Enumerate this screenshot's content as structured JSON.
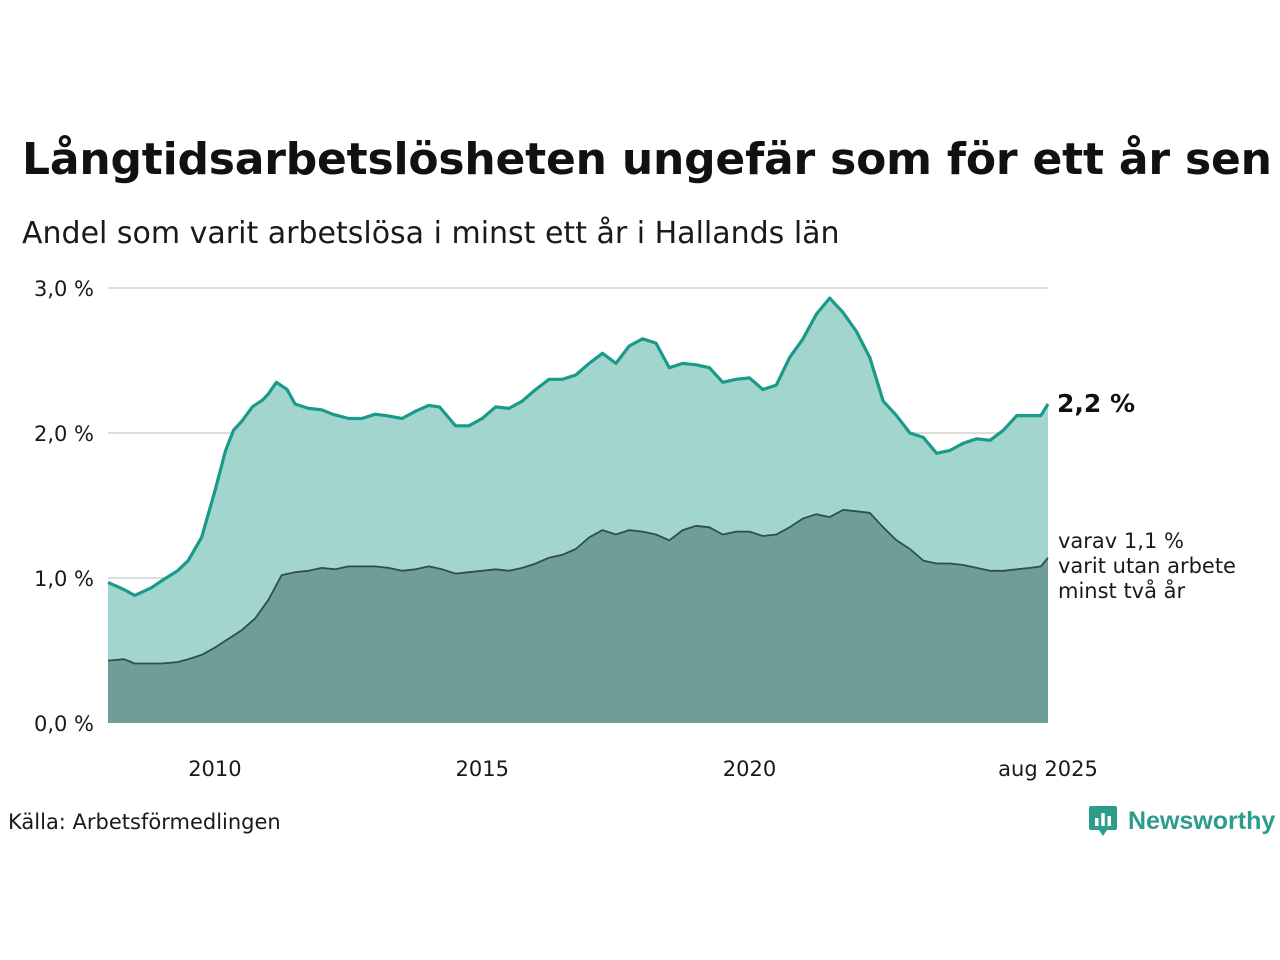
{
  "title": "Långtidsarbetslösheten ungefär som för ett år sen",
  "subtitle": "Andel som varit arbetslösa i minst ett år i Hallands län",
  "source": "Källa: Arbetsförmedlingen",
  "brand": {
    "name": "Newsworthy",
    "icon": "newsworthy-logo-icon",
    "color": "#2c9c8c"
  },
  "colors": {
    "outer_fill": "#a3d5cf",
    "outer_line": "#1a9a8a",
    "inner_fill": "#6f9e98",
    "inner_line": "#2f4f4a",
    "grid": "#dddddd"
  },
  "chart_data": {
    "type": "area",
    "x_unit": "year (decimal)",
    "xlim": [
      2008.0,
      2025.583
    ],
    "ylim": [
      0,
      3.0
    ],
    "yticks": [
      {
        "value": 0,
        "label": "0,0 %"
      },
      {
        "value": 1.0,
        "label": "1,0 %"
      },
      {
        "value": 2.0,
        "label": "2,0 %"
      },
      {
        "value": 3.0,
        "label": "3,0 %"
      }
    ],
    "xticks": [
      {
        "value": 2010,
        "label": "2010"
      },
      {
        "value": 2015,
        "label": "2015"
      },
      {
        "value": 2020,
        "label": "2020"
      },
      {
        "value": 2025.583,
        "label": "aug 2025"
      }
    ],
    "grid": true,
    "series": [
      {
        "name": "minst ett år",
        "end_label": "2,2 %",
        "points": [
          [
            2008.0,
            0.97
          ],
          [
            2008.3,
            0.92
          ],
          [
            2008.5,
            0.88
          ],
          [
            2008.8,
            0.93
          ],
          [
            2009.0,
            0.98
          ],
          [
            2009.3,
            1.05
          ],
          [
            2009.5,
            1.12
          ],
          [
            2009.75,
            1.28
          ],
          [
            2010.0,
            1.6
          ],
          [
            2010.2,
            1.88
          ],
          [
            2010.35,
            2.02
          ],
          [
            2010.5,
            2.08
          ],
          [
            2010.7,
            2.18
          ],
          [
            2010.9,
            2.23
          ],
          [
            2011.0,
            2.27
          ],
          [
            2011.15,
            2.35
          ],
          [
            2011.35,
            2.3
          ],
          [
            2011.5,
            2.2
          ],
          [
            2011.75,
            2.17
          ],
          [
            2012.0,
            2.16
          ],
          [
            2012.2,
            2.13
          ],
          [
            2012.5,
            2.1
          ],
          [
            2012.75,
            2.1
          ],
          [
            2013.0,
            2.13
          ],
          [
            2013.2,
            2.12
          ],
          [
            2013.5,
            2.1
          ],
          [
            2013.75,
            2.15
          ],
          [
            2014.0,
            2.19
          ],
          [
            2014.2,
            2.18
          ],
          [
            2014.5,
            2.05
          ],
          [
            2014.75,
            2.05
          ],
          [
            2015.0,
            2.1
          ],
          [
            2015.25,
            2.18
          ],
          [
            2015.5,
            2.17
          ],
          [
            2015.75,
            2.22
          ],
          [
            2016.0,
            2.3
          ],
          [
            2016.25,
            2.37
          ],
          [
            2016.5,
            2.37
          ],
          [
            2016.75,
            2.4
          ],
          [
            2017.0,
            2.48
          ],
          [
            2017.25,
            2.55
          ],
          [
            2017.5,
            2.48
          ],
          [
            2017.75,
            2.6
          ],
          [
            2018.0,
            2.65
          ],
          [
            2018.25,
            2.62
          ],
          [
            2018.5,
            2.45
          ],
          [
            2018.75,
            2.48
          ],
          [
            2019.0,
            2.47
          ],
          [
            2019.25,
            2.45
          ],
          [
            2019.5,
            2.35
          ],
          [
            2019.75,
            2.37
          ],
          [
            2020.0,
            2.38
          ],
          [
            2020.25,
            2.3
          ],
          [
            2020.5,
            2.33
          ],
          [
            2020.75,
            2.52
          ],
          [
            2021.0,
            2.65
          ],
          [
            2021.25,
            2.82
          ],
          [
            2021.5,
            2.93
          ],
          [
            2021.75,
            2.83
          ],
          [
            2022.0,
            2.7
          ],
          [
            2022.25,
            2.52
          ],
          [
            2022.5,
            2.22
          ],
          [
            2022.75,
            2.12
          ],
          [
            2023.0,
            2.0
          ],
          [
            2023.25,
            1.97
          ],
          [
            2023.5,
            1.86
          ],
          [
            2023.75,
            1.88
          ],
          [
            2024.0,
            1.93
          ],
          [
            2024.25,
            1.96
          ],
          [
            2024.5,
            1.95
          ],
          [
            2024.75,
            2.02
          ],
          [
            2025.0,
            2.12
          ],
          [
            2025.25,
            2.12
          ],
          [
            2025.45,
            2.12
          ],
          [
            2025.583,
            2.2
          ]
        ]
      },
      {
        "name": "minst två år",
        "end_label": "varav 1,1 % varit utan arbete minst två år",
        "end_label_lines": [
          "varav 1,1 %",
          "varit utan arbete",
          "minst två år"
        ],
        "points": [
          [
            2008.0,
            0.43
          ],
          [
            2008.3,
            0.44
          ],
          [
            2008.5,
            0.41
          ],
          [
            2008.8,
            0.41
          ],
          [
            2009.0,
            0.41
          ],
          [
            2009.3,
            0.42
          ],
          [
            2009.5,
            0.44
          ],
          [
            2009.75,
            0.47
          ],
          [
            2010.0,
            0.52
          ],
          [
            2010.25,
            0.58
          ],
          [
            2010.5,
            0.64
          ],
          [
            2010.75,
            0.72
          ],
          [
            2011.0,
            0.85
          ],
          [
            2011.25,
            1.02
          ],
          [
            2011.5,
            1.04
          ],
          [
            2011.75,
            1.05
          ],
          [
            2012.0,
            1.07
          ],
          [
            2012.25,
            1.06
          ],
          [
            2012.5,
            1.08
          ],
          [
            2012.75,
            1.08
          ],
          [
            2013.0,
            1.08
          ],
          [
            2013.25,
            1.07
          ],
          [
            2013.5,
            1.05
          ],
          [
            2013.75,
            1.06
          ],
          [
            2014.0,
            1.08
          ],
          [
            2014.25,
            1.06
          ],
          [
            2014.5,
            1.03
          ],
          [
            2014.75,
            1.04
          ],
          [
            2015.0,
            1.05
          ],
          [
            2015.25,
            1.06
          ],
          [
            2015.5,
            1.05
          ],
          [
            2015.75,
            1.07
          ],
          [
            2016.0,
            1.1
          ],
          [
            2016.25,
            1.14
          ],
          [
            2016.5,
            1.16
          ],
          [
            2016.75,
            1.2
          ],
          [
            2017.0,
            1.28
          ],
          [
            2017.25,
            1.33
          ],
          [
            2017.5,
            1.3
          ],
          [
            2017.75,
            1.33
          ],
          [
            2018.0,
            1.32
          ],
          [
            2018.25,
            1.3
          ],
          [
            2018.5,
            1.26
          ],
          [
            2018.75,
            1.33
          ],
          [
            2019.0,
            1.36
          ],
          [
            2019.25,
            1.35
          ],
          [
            2019.5,
            1.3
          ],
          [
            2019.75,
            1.32
          ],
          [
            2020.0,
            1.32
          ],
          [
            2020.25,
            1.29
          ],
          [
            2020.5,
            1.3
          ],
          [
            2020.75,
            1.35
          ],
          [
            2021.0,
            1.41
          ],
          [
            2021.25,
            1.44
          ],
          [
            2021.5,
            1.42
          ],
          [
            2021.75,
            1.47
          ],
          [
            2022.0,
            1.46
          ],
          [
            2022.25,
            1.45
          ],
          [
            2022.5,
            1.35
          ],
          [
            2022.75,
            1.26
          ],
          [
            2023.0,
            1.2
          ],
          [
            2023.25,
            1.12
          ],
          [
            2023.5,
            1.1
          ],
          [
            2023.75,
            1.1
          ],
          [
            2024.0,
            1.09
          ],
          [
            2024.25,
            1.07
          ],
          [
            2024.5,
            1.05
          ],
          [
            2024.75,
            1.05
          ],
          [
            2025.0,
            1.06
          ],
          [
            2025.25,
            1.07
          ],
          [
            2025.45,
            1.08
          ],
          [
            2025.583,
            1.14
          ]
        ]
      }
    ]
  }
}
